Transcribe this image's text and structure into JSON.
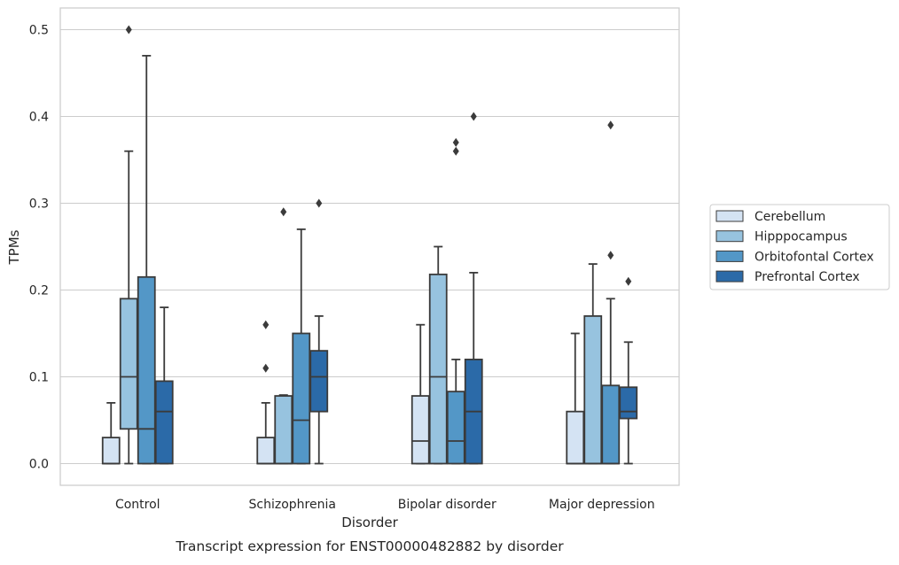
{
  "caption": "Transcript expression for ENST00000482882 by disorder",
  "chart_data": {
    "type": "box",
    "xlabel": "Disorder",
    "ylabel": "TPMs",
    "ylim": [
      -0.025,
      0.525
    ],
    "yticks": [
      0.0,
      0.1,
      0.2,
      0.3,
      0.4,
      0.5
    ],
    "ytick_labels": [
      "0.0",
      "0.1",
      "0.2",
      "0.3",
      "0.4",
      "0.5"
    ],
    "categories": [
      "Control",
      "Schizophrenia",
      "Bipolar disorder",
      "Major depression"
    ],
    "grid": "horizontal",
    "legend_placement": "right",
    "series": [
      {
        "name": "Cerebellum",
        "color": "#d4e3f3",
        "boxes": [
          {
            "q1": 0.0,
            "median": 0.0,
            "q3": 0.03,
            "whisker_low": 0.0,
            "whisker_high": 0.07,
            "outliers": []
          },
          {
            "q1": 0.0,
            "median": 0.0,
            "q3": 0.03,
            "whisker_low": 0.0,
            "whisker_high": 0.07,
            "outliers": [
              0.11,
              0.16
            ]
          },
          {
            "q1": 0.0,
            "median": 0.026,
            "q3": 0.078,
            "whisker_low": 0.0,
            "whisker_high": 0.16,
            "outliers": []
          },
          {
            "q1": 0.0,
            "median": 0.0,
            "q3": 0.06,
            "whisker_low": 0.0,
            "whisker_high": 0.15,
            "outliers": []
          }
        ]
      },
      {
        "name": "Hipppocampus",
        "color": "#97c3df",
        "boxes": [
          {
            "q1": 0.04,
            "median": 0.1,
            "q3": 0.19,
            "whisker_low": 0.0,
            "whisker_high": 0.36,
            "outliers": [
              0.5
            ]
          },
          {
            "q1": 0.0,
            "median": 0.0,
            "q3": 0.078,
            "whisker_low": 0.0,
            "whisker_high": 0.079,
            "outliers": [
              0.29
            ]
          },
          {
            "q1": 0.0,
            "median": 0.1,
            "q3": 0.218,
            "whisker_low": 0.0,
            "whisker_high": 0.25,
            "outliers": []
          },
          {
            "q1": 0.0,
            "median": 0.0,
            "q3": 0.17,
            "whisker_low": 0.0,
            "whisker_high": 0.23,
            "outliers": []
          }
        ]
      },
      {
        "name": "Orbitofontal Cortex",
        "color": "#5397c7",
        "boxes": [
          {
            "q1": 0.0,
            "median": 0.04,
            "q3": 0.215,
            "whisker_low": 0.0,
            "whisker_high": 0.47,
            "outliers": []
          },
          {
            "q1": 0.0,
            "median": 0.05,
            "q3": 0.15,
            "whisker_low": 0.0,
            "whisker_high": 0.27,
            "outliers": []
          },
          {
            "q1": 0.0,
            "median": 0.026,
            "q3": 0.083,
            "whisker_low": 0.0,
            "whisker_high": 0.12,
            "outliers": [
              0.36,
              0.37
            ]
          },
          {
            "q1": 0.0,
            "median": 0.0,
            "q3": 0.09,
            "whisker_low": 0.0,
            "whisker_high": 0.19,
            "outliers": [
              0.24,
              0.39
            ]
          }
        ]
      },
      {
        "name": "Prefrontal Cortex",
        "color": "#2b6aa8",
        "boxes": [
          {
            "q1": 0.0,
            "median": 0.06,
            "q3": 0.095,
            "whisker_low": 0.0,
            "whisker_high": 0.18,
            "outliers": []
          },
          {
            "q1": 0.06,
            "median": 0.1,
            "q3": 0.13,
            "whisker_low": 0.0,
            "whisker_high": 0.17,
            "outliers": [
              0.3
            ]
          },
          {
            "q1": 0.0,
            "median": 0.06,
            "q3": 0.12,
            "whisker_low": 0.0,
            "whisker_high": 0.22,
            "outliers": [
              0.4
            ]
          },
          {
            "q1": 0.052,
            "median": 0.06,
            "q3": 0.088,
            "whisker_low": 0.0,
            "whisker_high": 0.14,
            "outliers": [
              0.21
            ]
          }
        ]
      }
    ]
  }
}
